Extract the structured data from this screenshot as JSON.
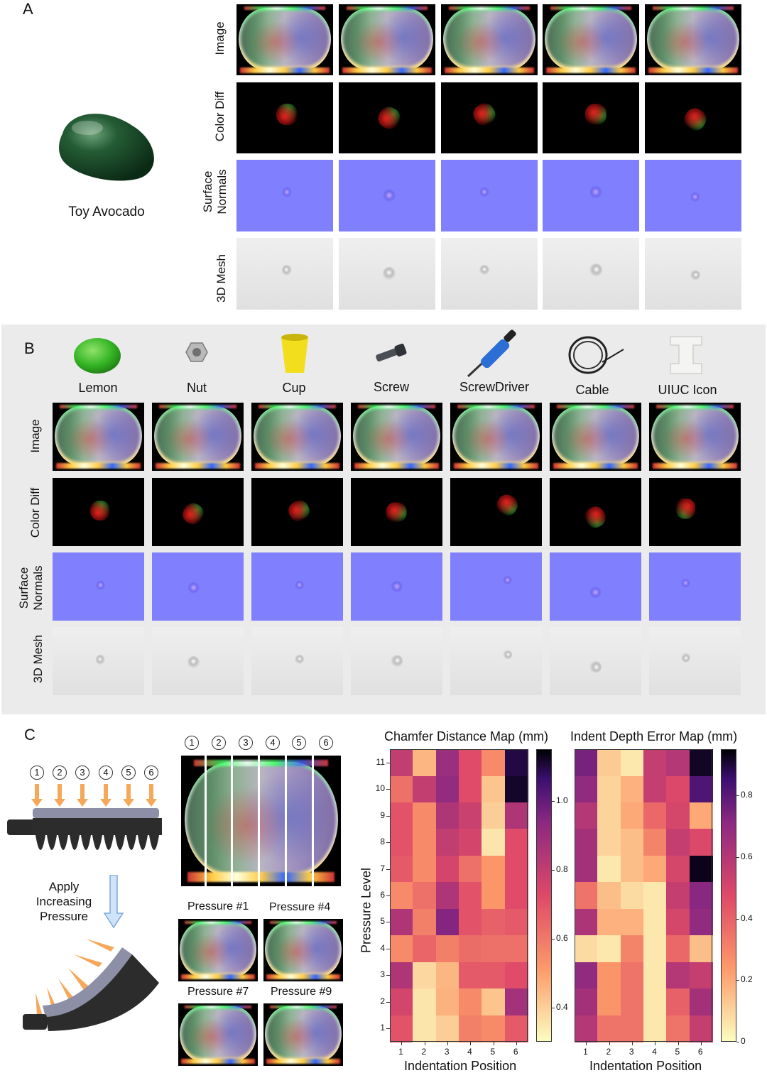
{
  "panel_a": {
    "letter": "A",
    "object_label": "Toy Avocado",
    "row_labels": [
      "Image",
      "Color Diff",
      "Surface\nNormals",
      "3D Mesh"
    ]
  },
  "panel_b": {
    "letter": "B",
    "objects": [
      "Lemon",
      "Nut",
      "Cup",
      "Screw",
      "ScrewDriver",
      "Cable",
      "UIUC Icon"
    ],
    "row_labels": [
      "Image",
      "Color Diff",
      "Surface\nNormals",
      "3D Mesh"
    ]
  },
  "panel_c": {
    "letter": "C",
    "positions": [
      "1",
      "2",
      "3",
      "4",
      "5",
      "6"
    ],
    "apply_text": "Apply\nIncreasing\nPressure",
    "pressure_labels": [
      "Pressure #1",
      "Pressure #4",
      "Pressure #7",
      "Pressure #9"
    ]
  },
  "chart_data": [
    {
      "type": "heatmap",
      "title": "Chamfer Distance Map (mm)",
      "xlabel": "Indentation Position",
      "ylabel": "Pressure Level",
      "x": [
        1,
        2,
        3,
        4,
        5,
        6
      ],
      "y": [
        11,
        10,
        9,
        8,
        7,
        6,
        5,
        4,
        3,
        2,
        1
      ],
      "colormap": "magma_r",
      "vlim": [
        0.3,
        1.15
      ],
      "colorbar_ticks": [
        "1.0",
        "0.8",
        "0.6",
        "0.4"
      ],
      "colorbar_tick_values": [
        1.0,
        0.8,
        0.6,
        0.4
      ],
      "values": [
        [
          0.8,
          0.45,
          0.9,
          0.72,
          0.55,
          1.1
        ],
        [
          0.62,
          0.8,
          0.92,
          0.72,
          0.42,
          1.12
        ],
        [
          0.7,
          0.55,
          0.85,
          0.78,
          0.4,
          0.85
        ],
        [
          0.7,
          0.55,
          0.8,
          0.75,
          0.35,
          0.72
        ],
        [
          0.68,
          0.55,
          0.75,
          0.62,
          0.52,
          0.72
        ],
        [
          0.55,
          0.62,
          0.85,
          0.7,
          0.52,
          0.72
        ],
        [
          0.85,
          0.58,
          0.95,
          0.7,
          0.66,
          0.68
        ],
        [
          0.55,
          0.65,
          0.58,
          0.63,
          0.62,
          0.62
        ],
        [
          0.85,
          0.38,
          0.45,
          0.68,
          0.68,
          0.72
        ],
        [
          0.75,
          0.35,
          0.46,
          0.55,
          0.42,
          0.88
        ],
        [
          0.7,
          0.35,
          0.4,
          0.58,
          0.55,
          0.68
        ]
      ]
    },
    {
      "type": "heatmap",
      "title": "Indent Depth Error Map (mm)",
      "xlabel": "Indentation Position",
      "ylabel": "",
      "x": [
        1,
        2,
        3,
        4,
        5,
        6
      ],
      "y": [
        11,
        10,
        9,
        8,
        7,
        6,
        5,
        4,
        3,
        2,
        1
      ],
      "colormap": "magma_r",
      "vlim": [
        0.0,
        0.95
      ],
      "colorbar_ticks": [
        "0.8",
        "0.6",
        "0.4",
        "0.2",
        "0"
      ],
      "colorbar_tick_values": [
        0.8,
        0.6,
        0.4,
        0.2,
        0.0
      ],
      "values": [
        [
          0.75,
          0.12,
          0.05,
          0.55,
          0.6,
          0.92
        ],
        [
          0.7,
          0.1,
          0.18,
          0.55,
          0.48,
          0.82
        ],
        [
          0.6,
          0.1,
          0.2,
          0.38,
          0.5,
          0.2
        ],
        [
          0.65,
          0.1,
          0.15,
          0.3,
          0.55,
          0.48
        ],
        [
          0.65,
          0.05,
          0.15,
          0.2,
          0.5,
          0.93
        ],
        [
          0.35,
          0.15,
          0.08,
          0.05,
          0.55,
          0.72
        ],
        [
          0.62,
          0.18,
          0.18,
          0.05,
          0.5,
          0.7
        ],
        [
          0.08,
          0.05,
          0.3,
          0.05,
          0.38,
          0.15
        ],
        [
          0.7,
          0.25,
          0.35,
          0.05,
          0.6,
          0.55
        ],
        [
          0.65,
          0.25,
          0.35,
          0.05,
          0.4,
          0.65
        ],
        [
          0.6,
          0.35,
          0.35,
          0.05,
          0.35,
          0.55
        ]
      ]
    }
  ]
}
